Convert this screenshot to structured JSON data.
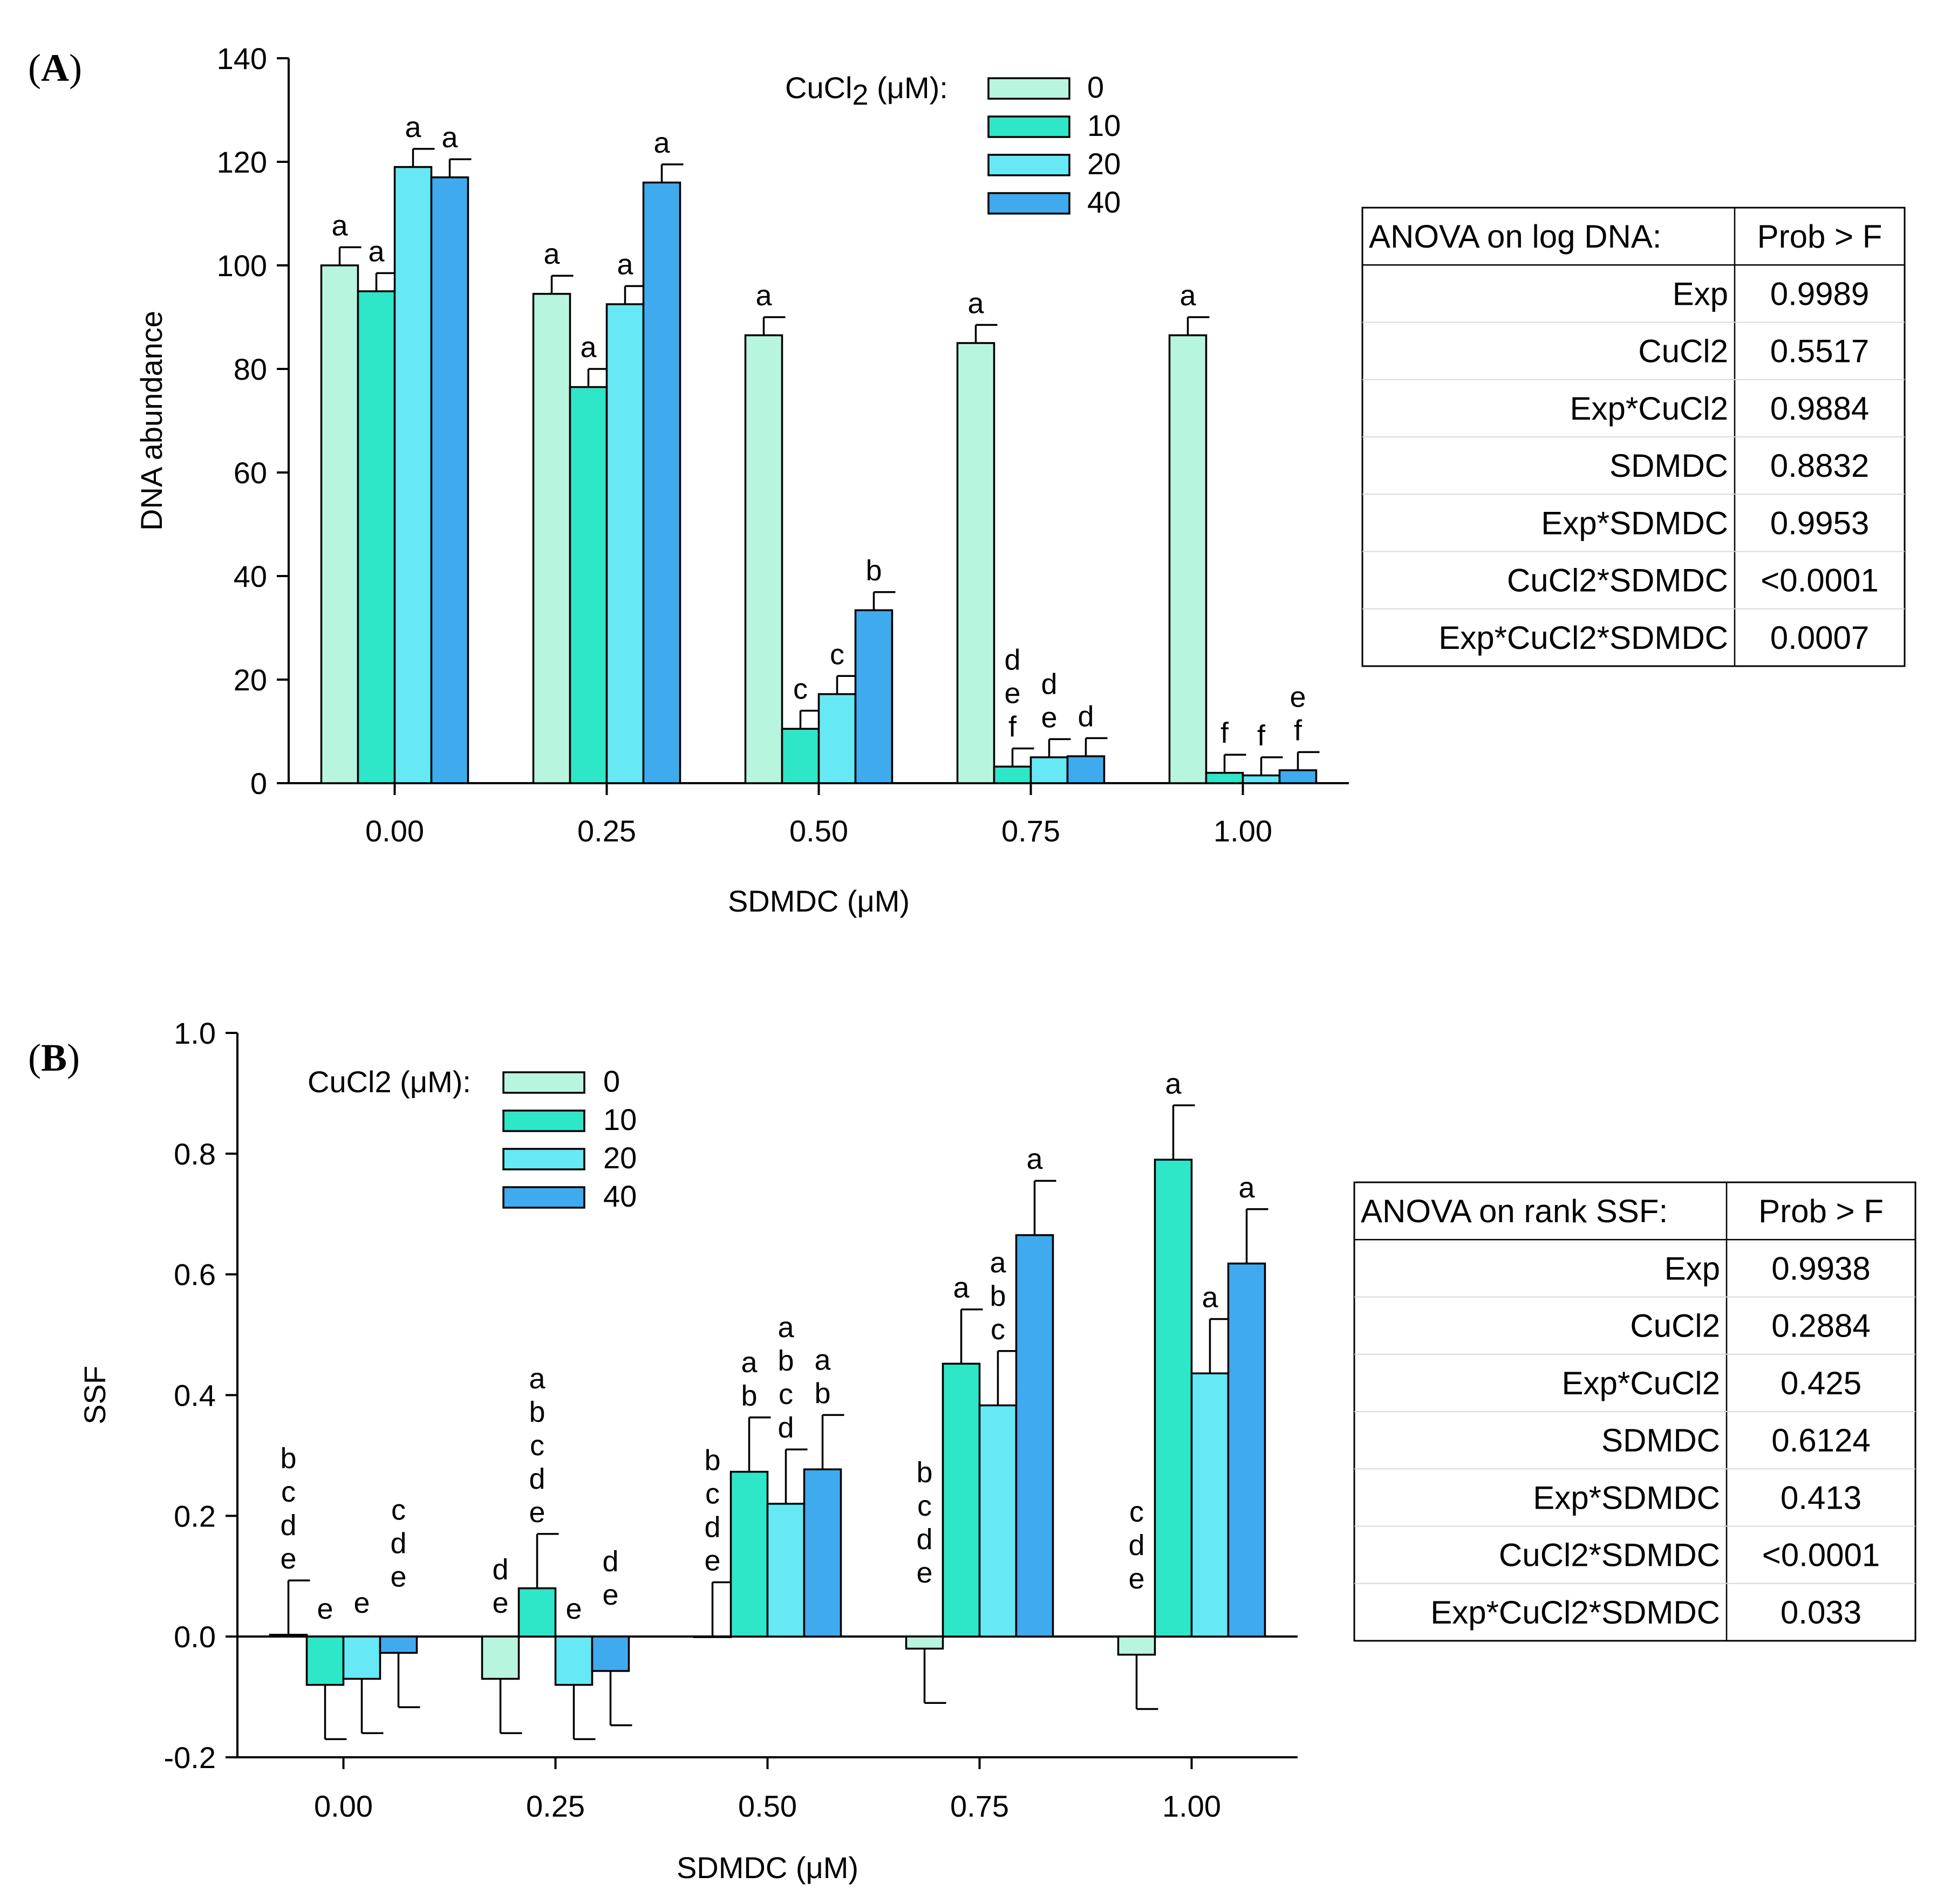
{
  "chart_data": [
    {
      "type": "bar",
      "panel_label": {
        "open": "(",
        "letter": "A",
        "close": ")"
      },
      "ylabel": "DNA abundance",
      "xlabel": "SDMDC (μM)",
      "ylim": [
        0,
        140
      ],
      "yticks": [
        "0",
        "20",
        "40",
        "60",
        "80",
        "100",
        "120",
        "140"
      ],
      "ytick_values": [
        0,
        20,
        40,
        60,
        80,
        100,
        120,
        140
      ],
      "categories": [
        "0.00",
        "0.25",
        "0.50",
        "0.75",
        "1.00"
      ],
      "legend": {
        "title": "CuCl2 (μM):",
        "title_base": "CuCl",
        "title_sub": "2",
        "title_rest": " (μM):",
        "placement": "top-center"
      },
      "series": [
        {
          "name": "0",
          "color": "#b8f5df",
          "values": [
            100,
            94.5,
            86.5,
            85,
            86.5
          ],
          "errors": [
            3.5,
            3.5,
            3.5,
            3.5,
            3.5
          ],
          "labels": [
            [
              "a"
            ],
            [
              "a"
            ],
            [
              "a"
            ],
            [
              "a"
            ],
            [
              "a"
            ]
          ]
        },
        {
          "name": "10",
          "color": "#2ee6c8",
          "values": [
            95,
            76.5,
            10.5,
            3.2,
            2
          ],
          "errors": [
            3.5,
            3.5,
            3.5,
            3.5,
            3.5
          ],
          "labels": [
            [
              "a"
            ],
            [
              "a"
            ],
            [
              "c"
            ],
            [
              "d",
              "e",
              "f"
            ],
            [
              "f"
            ]
          ]
        },
        {
          "name": "20",
          "color": "#66e8f5",
          "values": [
            119,
            92.5,
            17.2,
            5,
            1.5
          ],
          "errors": [
            3.5,
            3.5,
            3.5,
            3.5,
            3.5
          ],
          "labels": [
            [
              "a"
            ],
            [
              "a"
            ],
            [
              "c"
            ],
            [
              "d",
              "e"
            ],
            [
              "f"
            ]
          ]
        },
        {
          "name": "40",
          "color": "#40aaee",
          "values": [
            117,
            116,
            33.4,
            5.2,
            2.5
          ],
          "errors": [
            3.5,
            3.5,
            3.5,
            3.5,
            3.5
          ],
          "labels": [
            [
              "a"
            ],
            [
              "a"
            ],
            [
              "b"
            ],
            [
              "d"
            ],
            [
              "e",
              "f"
            ]
          ]
        }
      ],
      "anova": {
        "header": [
          "ANOVA on log DNA:",
          "Prob > F"
        ],
        "rows": [
          [
            "Exp",
            "0.9989"
          ],
          [
            "CuCl2",
            "0.5517"
          ],
          [
            "Exp*CuCl2",
            "0.9884"
          ],
          [
            "SDMDC",
            "0.8832"
          ],
          [
            "Exp*SDMDC",
            "0.9953"
          ],
          [
            "CuCl2*SDMDC",
            "<0.0001"
          ],
          [
            "Exp*CuCl2*SDMDC",
            "0.0007"
          ]
        ]
      }
    },
    {
      "type": "bar",
      "panel_label": {
        "open": "(",
        "letter": "B",
        "close": ")"
      },
      "ylabel": "SSF",
      "xlabel": "SDMDC (μM)",
      "ylim": [
        -0.2,
        1.0
      ],
      "yticks": [
        "-0.2",
        "0.0",
        "0.2",
        "0.4",
        "0.6",
        "0.8",
        "1.0"
      ],
      "ytick_values": [
        -0.2,
        0.0,
        0.2,
        0.4,
        0.6,
        0.8,
        1.0
      ],
      "categories": [
        "0.00",
        "0.25",
        "0.50",
        "0.75",
        "1.00"
      ],
      "legend": {
        "title": "CuCl2 (μM):",
        "title_base": "CuCl2",
        "title_sub": "",
        "title_rest": " (μM):",
        "placement": "top-left"
      },
      "series": [
        {
          "name": "0",
          "color": "#b8f5df",
          "values": [
            0.003,
            -0.07,
            0.0,
            -0.02,
            -0.03
          ],
          "errors": [
            0.09,
            0.09,
            0.09,
            0.09,
            0.09
          ],
          "labels": [
            [
              "b",
              "c",
              "d",
              "e"
            ],
            [
              "d",
              "e"
            ],
            [
              "b",
              "c",
              "d",
              "e"
            ],
            [
              "b",
              "c",
              "d",
              "e"
            ],
            [
              "c",
              "d",
              "e"
            ]
          ]
        },
        {
          "name": "10",
          "color": "#2ee6c8",
          "values": [
            -0.08,
            0.08,
            0.273,
            0.452,
            0.79
          ],
          "errors": [
            0.09,
            0.09,
            0.09,
            0.09,
            0.09
          ],
          "labels": [
            [
              "e"
            ],
            [
              "a",
              "b",
              "c",
              "d",
              "e"
            ],
            [
              "a",
              "b"
            ],
            [
              "a"
            ],
            [
              "a"
            ]
          ]
        },
        {
          "name": "20",
          "color": "#66e8f5",
          "values": [
            -0.07,
            -0.08,
            0.22,
            0.383,
            0.436
          ],
          "errors": [
            0.09,
            0.09,
            0.09,
            0.09,
            0.09
          ],
          "labels": [
            [
              "e"
            ],
            [
              "e"
            ],
            [
              "a",
              "b",
              "c",
              "d"
            ],
            [
              "a",
              "b",
              "c"
            ],
            [
              "a"
            ]
          ]
        },
        {
          "name": "40",
          "color": "#40aaee",
          "values": [
            -0.027,
            -0.057,
            0.277,
            0.665,
            0.618
          ],
          "errors": [
            0.09,
            0.09,
            0.09,
            0.09,
            0.09
          ],
          "labels": [
            [
              "c",
              "d",
              "e"
            ],
            [
              "d",
              "e"
            ],
            [
              "a",
              "b"
            ],
            [
              "a"
            ],
            [
              "a"
            ]
          ]
        }
      ],
      "anova": {
        "header": [
          "ANOVA on rank SSF:",
          "Prob > F"
        ],
        "rows": [
          [
            "Exp",
            "0.9938"
          ],
          [
            "CuCl2",
            "0.2884"
          ],
          [
            "Exp*CuCl2",
            "0.425"
          ],
          [
            "SDMDC",
            "0.6124"
          ],
          [
            "Exp*SDMDC",
            "0.413"
          ],
          [
            "CuCl2*SDMDC",
            "<0.0001"
          ],
          [
            "Exp*CuCl2*SDMDC",
            "0.033"
          ]
        ]
      }
    }
  ]
}
